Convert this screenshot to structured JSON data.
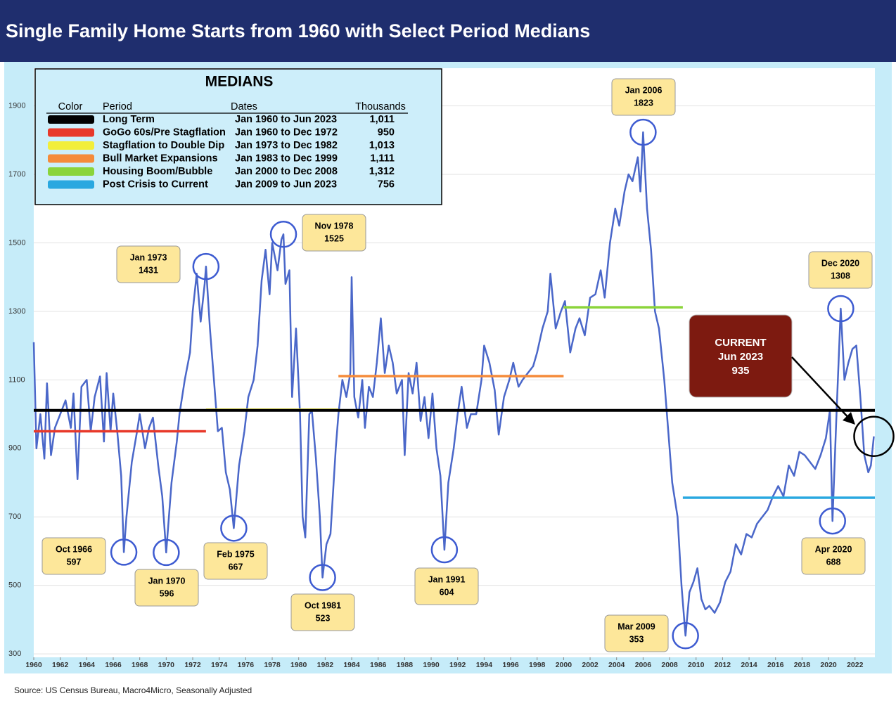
{
  "chart_data": {
    "type": "line",
    "title": "Single Family Home Starts from 1960 with Select Period Medians",
    "source": "Source: US Census Bureau, Macro4Micro, Seasonally Adjusted",
    "xlim": [
      1960,
      2023.5
    ],
    "xticks": [
      1960,
      1962,
      1964,
      1966,
      1968,
      1970,
      1972,
      1974,
      1976,
      1978,
      1980,
      1982,
      1984,
      1986,
      1988,
      1990,
      1992,
      1994,
      1996,
      1998,
      2000,
      2002,
      2004,
      2006,
      2008,
      2010,
      2012,
      2014,
      2016,
      2018,
      2020,
      2022
    ],
    "ylim": [
      290,
      2010
    ],
    "yticks": [
      300,
      500,
      700,
      900,
      1100,
      1300,
      1500,
      1700,
      1900
    ],
    "grid": true,
    "x": [
      1960.0,
      1960.2,
      1960.5,
      1960.8,
      1961.0,
      1961.3,
      1961.6,
      1962.0,
      1962.4,
      1962.8,
      1963.0,
      1963.3,
      1963.6,
      1964.0,
      1964.3,
      1964.6,
      1965.0,
      1965.3,
      1965.5,
      1965.8,
      1966.0,
      1966.3,
      1966.6,
      1966.8,
      1967.0,
      1967.4,
      1967.8,
      1968.0,
      1968.4,
      1968.7,
      1969.0,
      1969.4,
      1969.7,
      1970.0,
      1970.4,
      1970.8,
      1971.0,
      1971.4,
      1971.8,
      1972.0,
      1972.3,
      1972.6,
      1972.9,
      1973.0,
      1973.3,
      1973.6,
      1973.9,
      1974.2,
      1974.5,
      1974.8,
      1975.1,
      1975.5,
      1975.9,
      1976.2,
      1976.6,
      1976.9,
      1977.2,
      1977.5,
      1977.8,
      1978.0,
      1978.4,
      1978.7,
      1978.85,
      1979.0,
      1979.3,
      1979.5,
      1979.8,
      1980.1,
      1980.3,
      1980.5,
      1980.8,
      1981.0,
      1981.3,
      1981.6,
      1981.8,
      1982.1,
      1982.4,
      1982.8,
      1983.0,
      1983.3,
      1983.6,
      1983.9,
      1984.0,
      1984.2,
      1984.5,
      1984.8,
      1985.0,
      1985.3,
      1985.6,
      1985.9,
      1986.2,
      1986.5,
      1986.8,
      1987.1,
      1987.4,
      1987.8,
      1988.0,
      1988.3,
      1988.6,
      1988.9,
      1989.2,
      1989.5,
      1989.8,
      1990.1,
      1990.4,
      1990.7,
      1991.0,
      1991.3,
      1991.7,
      1992.0,
      1992.3,
      1992.7,
      1993.0,
      1993.4,
      1993.8,
      1994.0,
      1994.4,
      1994.8,
      1995.1,
      1995.5,
      1995.9,
      1996.2,
      1996.6,
      1996.9,
      1997.3,
      1997.7,
      1998.0,
      1998.4,
      1998.8,
      1999.0,
      1999.4,
      1999.8,
      2000.1,
      2000.5,
      2000.9,
      2001.2,
      2001.6,
      2002.0,
      2002.4,
      2002.8,
      2003.1,
      2003.5,
      2003.9,
      2004.2,
      2004.6,
      2004.9,
      2005.2,
      2005.6,
      2005.8,
      2006.0,
      2006.3,
      2006.6,
      2006.9,
      2007.2,
      2007.6,
      2007.9,
      2008.2,
      2008.6,
      2008.9,
      2009.2,
      2009.5,
      2009.8,
      2010.1,
      2010.4,
      2010.7,
      2011.0,
      2011.4,
      2011.8,
      2012.2,
      2012.6,
      2013.0,
      2013.4,
      2013.8,
      2014.2,
      2014.6,
      2015.0,
      2015.4,
      2015.8,
      2016.2,
      2016.6,
      2017.0,
      2017.4,
      2017.8,
      2018.2,
      2018.6,
      2019.0,
      2019.4,
      2019.8,
      2020.1,
      2020.3,
      2020.6,
      2020.92,
      2021.2,
      2021.5,
      2021.8,
      2022.1,
      2022.4,
      2022.7,
      2023.0,
      2023.2,
      2023.42
    ],
    "series": [
      {
        "color": "#4a67c9",
        "values": [
          1210,
          900,
          1000,
          870,
          1090,
          880,
          960,
          1000,
          1040,
          960,
          1060,
          810,
          1080,
          1100,
          950,
          1050,
          1110,
          920,
          1120,
          950,
          1060,
          950,
          820,
          597,
          700,
          860,
          950,
          1000,
          900,
          960,
          990,
          850,
          760,
          596,
          800,
          920,
          1000,
          1100,
          1180,
          1300,
          1410,
          1270,
          1380,
          1431,
          1250,
          1100,
          950,
          960,
          830,
          780,
          667,
          850,
          950,
          1050,
          1100,
          1200,
          1390,
          1480,
          1350,
          1500,
          1420,
          1510,
          1525,
          1380,
          1420,
          1050,
          1250,
          1000,
          700,
          640,
          1000,
          1010,
          870,
          700,
          523,
          620,
          650,
          900,
          1000,
          1100,
          1050,
          1120,
          1400,
          1050,
          990,
          1100,
          960,
          1080,
          1050,
          1150,
          1280,
          1120,
          1200,
          1150,
          1060,
          1100,
          880,
          1120,
          1060,
          1150,
          980,
          1050,
          930,
          1060,
          900,
          820,
          604,
          800,
          900,
          1000,
          1080,
          960,
          1000,
          1000,
          1100,
          1200,
          1150,
          1070,
          940,
          1050,
          1100,
          1150,
          1080,
          1100,
          1120,
          1140,
          1180,
          1250,
          1300,
          1410,
          1250,
          1300,
          1330,
          1180,
          1250,
          1280,
          1230,
          1340,
          1350,
          1420,
          1340,
          1500,
          1600,
          1550,
          1650,
          1700,
          1680,
          1750,
          1650,
          1823,
          1600,
          1480,
          1300,
          1250,
          1100,
          950,
          800,
          700,
          500,
          353,
          480,
          510,
          550,
          460,
          430,
          440,
          420,
          450,
          510,
          540,
          620,
          590,
          650,
          640,
          680,
          700,
          720,
          760,
          790,
          760,
          850,
          820,
          890,
          880,
          860,
          840,
          880,
          930,
          1010,
          688,
          1000,
          1308,
          1100,
          1150,
          1190,
          1200,
          1050,
          880,
          830,
          850,
          935
        ]
      }
    ],
    "medians": {
      "title": "MEDIANS",
      "headers": [
        "Color",
        "Period",
        "Dates",
        "Thousands"
      ],
      "rows": [
        {
          "color": "#000000",
          "period": "Long Term",
          "dates": "Jan 1960 to Jun 2023",
          "value": 1011,
          "value_label": "1,011",
          "x_range": [
            1960,
            2023.5
          ]
        },
        {
          "color": "#e8392a",
          "period": "GoGo 60s/Pre Stagflation",
          "dates": "Jan 1960 to Dec 1972",
          "value": 950,
          "value_label": "950",
          "x_range": [
            1960,
            1973
          ]
        },
        {
          "color": "#f2ee3a",
          "period": "Stagflation to Double Dip",
          "dates": "Jan 1973 to Dec 1982",
          "value": 1013,
          "value_label": "1,013",
          "x_range": [
            1973,
            1983
          ]
        },
        {
          "color": "#f58b3a",
          "period": "Bull Market Expansions",
          "dates": "Jan 1983 to Dec 1999",
          "value": 1111,
          "value_label": "1,111",
          "x_range": [
            1983,
            2000
          ]
        },
        {
          "color": "#8bd43a",
          "period": "Housing Boom/Bubble",
          "dates": "Jan 2000 to Dec 2008",
          "value": 1312,
          "value_label": "1,312",
          "x_range": [
            2000,
            2009
          ]
        },
        {
          "color": "#2aa8e0",
          "period": "Post Crisis to Current",
          "dates": "Jan 2009 to Jun 2023",
          "value": 756,
          "value_label": "756",
          "x_range": [
            2009,
            2023.5
          ]
        }
      ]
    },
    "annotations": [
      {
        "label": "Oct 1966",
        "x": 1966.8,
        "value": 597
      },
      {
        "label": "Jan 1970",
        "x": 1970.0,
        "value": 596
      },
      {
        "label": "Jan 1973",
        "x": 1973.0,
        "value": 1431
      },
      {
        "label": "Feb 1975",
        "x": 1975.1,
        "value": 667
      },
      {
        "label": "Nov 1978",
        "x": 1978.85,
        "value": 1525
      },
      {
        "label": "Oct 1981",
        "x": 1981.8,
        "value": 523
      },
      {
        "label": "Jan 1991",
        "x": 1991.0,
        "value": 604
      },
      {
        "label": "Jan 2006",
        "x": 2006.0,
        "value": 1823
      },
      {
        "label": "Mar 2009",
        "x": 2009.2,
        "value": 353
      },
      {
        "label": "Dec 2020",
        "x": 2020.92,
        "value": 1308
      },
      {
        "label": "Apr 2020",
        "x": 2020.3,
        "value": 688
      }
    ],
    "current": {
      "title": "CURRENT",
      "label": "Jun 2023",
      "x": 2023.42,
      "value": 935
    }
  }
}
